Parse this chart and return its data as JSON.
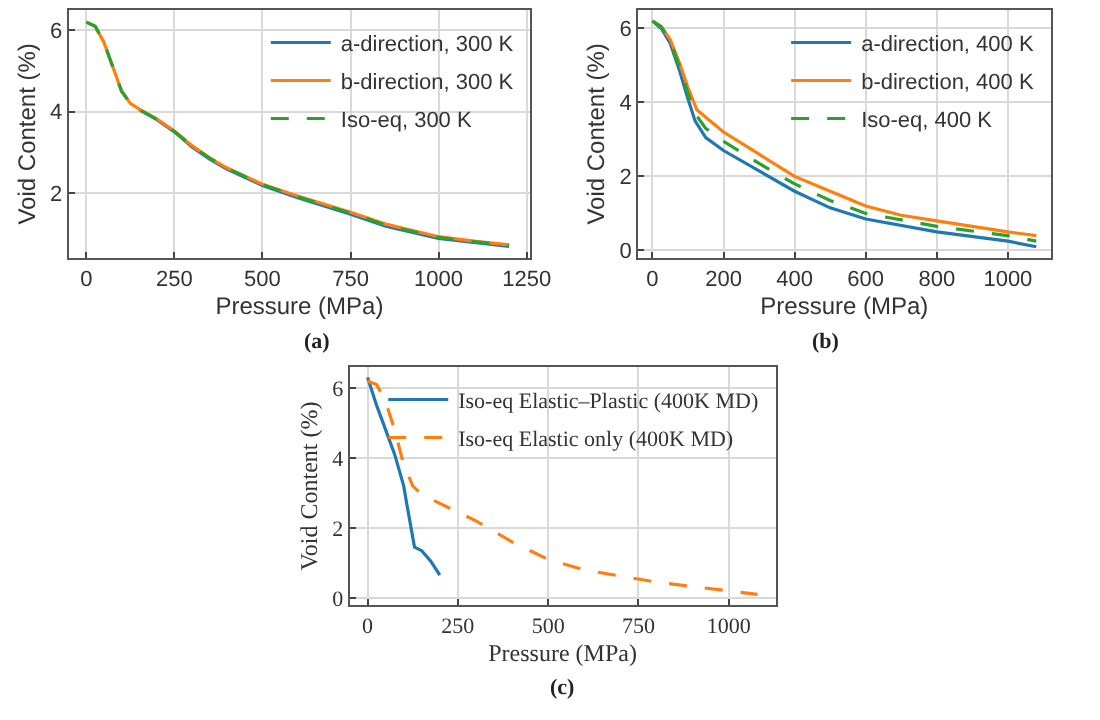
{
  "chart_data": [
    {
      "type": "line",
      "xlabel": "Pressure (MPa)",
      "ylabel": "Void Content (%)",
      "xlim": [
        -50,
        1260
      ],
      "ylim": [
        0.4,
        6.5
      ],
      "xticks": [
        0,
        250,
        500,
        750,
        1000,
        1250
      ],
      "yticks": [
        2,
        4,
        6
      ],
      "grid": true,
      "legend": "top right",
      "annotations": [
        "(a)"
      ],
      "series": [
        {
          "name": "a-direction, 300 K",
          "color": "#1f77b4",
          "line_style": "solid",
          "x": [
            150,
            200,
            250,
            300,
            350,
            400,
            500,
            600,
            750,
            850,
            1000,
            1100,
            1200
          ],
          "values": [
            4.05,
            3.8,
            3.5,
            3.13,
            2.83,
            2.58,
            2.18,
            1.88,
            1.47,
            1.18,
            0.88,
            0.78,
            0.68
          ]
        },
        {
          "name": "b-direction, 300 K",
          "color": "#ff7f0e",
          "line_style": "solid",
          "x": [
            0,
            25,
            50,
            75,
            100,
            125,
            150,
            200,
            250,
            300,
            350,
            400,
            500,
            600,
            750,
            850,
            1000,
            1100,
            1200
          ],
          "values": [
            6.2,
            6.1,
            5.7,
            5.1,
            4.5,
            4.2,
            4.06,
            3.82,
            3.52,
            3.16,
            2.86,
            2.61,
            2.21,
            1.92,
            1.52,
            1.23,
            0.92,
            0.81,
            0.72
          ]
        },
        {
          "name": "Iso-eq, 300 K",
          "color": "#2ca02c",
          "line_style": "dashed",
          "x": [
            0,
            25,
            50,
            75,
            100,
            125,
            150,
            200,
            250,
            300,
            350,
            400,
            500,
            600,
            750,
            850,
            1000,
            1100,
            1200
          ],
          "values": [
            6.2,
            6.1,
            5.7,
            5.1,
            4.5,
            4.2,
            4.05,
            3.81,
            3.51,
            3.15,
            2.85,
            2.6,
            2.2,
            1.9,
            1.5,
            1.2,
            0.9,
            0.8,
            0.7
          ]
        }
      ]
    },
    {
      "type": "line",
      "xlabel": "Pressure (MPa)",
      "ylabel": "Void Content (%)",
      "xlim": [
        -40,
        1120
      ],
      "ylim": [
        -0.2,
        6.5
      ],
      "xticks": [
        0,
        200,
        400,
        600,
        800,
        1000
      ],
      "yticks": [
        0,
        2,
        4,
        6
      ],
      "grid": true,
      "legend": "top right",
      "annotations": [
        "(b)"
      ],
      "series": [
        {
          "name": "a-direction, 400 K",
          "color": "#1f77b4",
          "line_style": "solid",
          "x": [
            0,
            25,
            50,
            75,
            100,
            120,
            150,
            200,
            300,
            400,
            500,
            600,
            800,
            1000,
            1080
          ],
          "values": [
            6.2,
            6.0,
            5.6,
            4.9,
            4.1,
            3.5,
            3.05,
            2.7,
            2.15,
            1.6,
            1.15,
            0.85,
            0.5,
            0.25,
            0.1
          ]
        },
        {
          "name": "b-direction, 400 K",
          "color": "#ff7f0e",
          "line_style": "solid",
          "x": [
            0,
            25,
            50,
            75,
            100,
            125,
            150,
            200,
            300,
            400,
            500,
            600,
            700,
            800,
            1000,
            1080
          ],
          "values": [
            6.2,
            6.05,
            5.7,
            5.1,
            4.4,
            3.8,
            3.6,
            3.2,
            2.6,
            2.0,
            1.6,
            1.2,
            0.95,
            0.8,
            0.5,
            0.4
          ]
        },
        {
          "name": "Iso-eq, 400 K",
          "color": "#2ca02c",
          "line_style": "dashed",
          "x": [
            0,
            25,
            50,
            75,
            100,
            120,
            150,
            200,
            300,
            400,
            500,
            600,
            800,
            1000,
            1080
          ],
          "values": [
            6.2,
            6.05,
            5.65,
            5.0,
            4.25,
            3.7,
            3.3,
            2.95,
            2.35,
            1.8,
            1.35,
            1.0,
            0.65,
            0.4,
            0.25
          ]
        }
      ]
    },
    {
      "type": "line",
      "xlabel": "Pressure (MPa)",
      "ylabel": "Void Content (%)",
      "xlim": [
        -50,
        1130
      ],
      "ylim": [
        -0.2,
        6.6
      ],
      "xticks": [
        0,
        250,
        500,
        750,
        1000
      ],
      "yticks": [
        0,
        2,
        4,
        6
      ],
      "grid": true,
      "legend": "top right",
      "annotations": [
        "(c)"
      ],
      "series": [
        {
          "name": "Iso-eq Elastic–Plastic (400K MD)",
          "color": "#1f77b4",
          "line_style": "solid",
          "x": [
            0,
            25,
            50,
            75,
            100,
            110,
            130,
            150,
            175,
            200
          ],
          "values": [
            6.3,
            5.5,
            4.8,
            4.1,
            3.2,
            2.6,
            1.45,
            1.35,
            1.05,
            0.65
          ]
        },
        {
          "name": "Iso-eq Elastic only (400K MD)",
          "color": "#ff7f0e",
          "line_style": "dashed",
          "x": [
            0,
            25,
            50,
            75,
            100,
            125,
            150,
            200,
            300,
            400,
            500,
            600,
            800,
            1000,
            1080
          ],
          "values": [
            6.2,
            6.1,
            5.6,
            4.8,
            3.8,
            3.2,
            2.95,
            2.7,
            2.2,
            1.6,
            1.1,
            0.8,
            0.45,
            0.2,
            0.1
          ]
        }
      ]
    }
  ]
}
